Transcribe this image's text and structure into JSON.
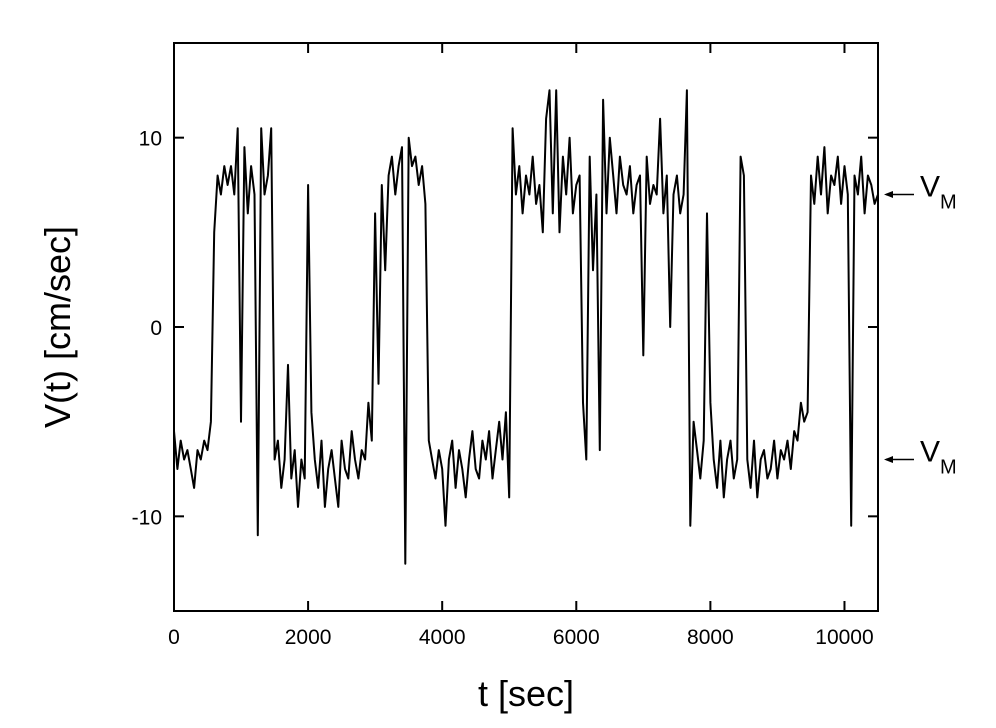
{
  "chart_data": {
    "type": "line",
    "xlabel": "t [sec]",
    "ylabel": "V(t) [cm/sec]",
    "xlim": [
      0,
      10500
    ],
    "ylim": [
      -15,
      15
    ],
    "xticks": [
      0,
      2000,
      4000,
      6000,
      8000,
      10000
    ],
    "yticks": [
      -10,
      0,
      10
    ],
    "annotations": [
      {
        "text": "V",
        "sub": "M",
        "value": 7
      },
      {
        "text": "V",
        "sub": "M",
        "value": -7
      }
    ],
    "x": [
      0,
      50,
      100,
      150,
      200,
      250,
      300,
      350,
      400,
      450,
      500,
      550,
      600,
      650,
      700,
      750,
      800,
      850,
      900,
      950,
      1000,
      1050,
      1100,
      1150,
      1200,
      1250,
      1300,
      1350,
      1400,
      1450,
      1500,
      1550,
      1600,
      1650,
      1700,
      1750,
      1800,
      1850,
      1900,
      1950,
      2000,
      2050,
      2100,
      2150,
      2200,
      2250,
      2300,
      2350,
      2400,
      2450,
      2500,
      2550,
      2600,
      2650,
      2700,
      2750,
      2800,
      2850,
      2900,
      2950,
      3000,
      3050,
      3100,
      3150,
      3200,
      3250,
      3300,
      3350,
      3400,
      3450,
      3500,
      3550,
      3600,
      3650,
      3700,
      3750,
      3800,
      3850,
      3900,
      3950,
      4000,
      4050,
      4100,
      4150,
      4200,
      4250,
      4300,
      4350,
      4400,
      4450,
      4500,
      4550,
      4600,
      4650,
      4700,
      4750,
      4800,
      4850,
      4900,
      4950,
      5000,
      5050,
      5100,
      5150,
      5200,
      5250,
      5300,
      5350,
      5400,
      5450,
      5500,
      5550,
      5600,
      5650,
      5700,
      5750,
      5800,
      5850,
      5900,
      5950,
      6000,
      6050,
      6100,
      6150,
      6200,
      6250,
      6300,
      6350,
      6400,
      6450,
      6500,
      6550,
      6600,
      6650,
      6700,
      6750,
      6800,
      6850,
      6900,
      6950,
      7000,
      7050,
      7100,
      7150,
      7200,
      7250,
      7300,
      7350,
      7400,
      7450,
      7500,
      7550,
      7600,
      7650,
      7700,
      7750,
      7800,
      7850,
      7900,
      7950,
      8000,
      8050,
      8100,
      8150,
      8200,
      8250,
      8300,
      8350,
      8400,
      8450,
      8500,
      8550,
      8600,
      8650,
      8700,
      8750,
      8800,
      8850,
      8900,
      8950,
      9000,
      9050,
      9100,
      9150,
      9200,
      9250,
      9300,
      9350,
      9400,
      9450,
      9500,
      9550,
      9600,
      9650,
      9700,
      9750,
      9800,
      9850,
      9900,
      9950,
      10000,
      10050,
      10100,
      10150,
      10200,
      10250,
      10300,
      10350,
      10400,
      10450,
      10500
    ],
    "series": [
      {
        "color": "#000000",
        "values": [
          -5.5,
          -7.5,
          -6,
          -7,
          -6.5,
          -7.5,
          -8.5,
          -6.5,
          -7,
          -6,
          -6.5,
          -5,
          5,
          8,
          7,
          8.5,
          7.5,
          8.5,
          7,
          10.5,
          -5,
          9.5,
          6,
          8.5,
          7,
          -11,
          10.5,
          7,
          8,
          10.5,
          -7,
          -6,
          -8.5,
          -7,
          -2,
          -8,
          -6.5,
          -9.5,
          -7,
          -8,
          7.5,
          -4.5,
          -7,
          -8.5,
          -6,
          -9.5,
          -7.5,
          -6.5,
          -8,
          -9.5,
          -6,
          -7.5,
          -8,
          -5.5,
          -7,
          -8,
          -6.5,
          -7,
          -4,
          -6,
          6,
          -3,
          7.5,
          3,
          8,
          9,
          7,
          8.5,
          9.5,
          -12.5,
          10,
          8.5,
          9,
          7.5,
          8.5,
          6.5,
          -6,
          -7,
          -8,
          -6.5,
          -7.5,
          -10.5,
          -7,
          -6,
          -8.5,
          -6.5,
          -7.5,
          -9,
          -7,
          -5.5,
          -7.5,
          -8,
          -6,
          -7,
          -5.5,
          -8,
          -6.5,
          -5,
          -7,
          -4.5,
          -9,
          10.5,
          7,
          8.5,
          6,
          8,
          7,
          9,
          6.5,
          7.5,
          5,
          11,
          12.5,
          6,
          12.5,
          5,
          9,
          7,
          10,
          6,
          7.5,
          8,
          -4,
          -7,
          9,
          3,
          7,
          -6.5,
          12,
          6,
          10,
          8,
          6,
          9,
          7.5,
          7,
          8.5,
          6,
          7.5,
          8,
          -1.5,
          9,
          6.5,
          7.5,
          7,
          11,
          6,
          8,
          0,
          7,
          8,
          6,
          7,
          12.5,
          -10.5,
          -5,
          -6.5,
          -8,
          -6,
          6,
          -4,
          -7,
          -8.5,
          -6,
          -9,
          -7,
          -6,
          -8,
          -7,
          9,
          8,
          -7,
          -8.5,
          -6,
          -9,
          -7,
          -6.5,
          -8,
          -7.5,
          -6,
          -8,
          -6.5,
          -7,
          -6,
          -7.5,
          -5.5,
          -6,
          -4,
          -5,
          -4.5,
          8,
          6.5,
          9,
          7,
          9.5,
          6,
          8,
          7.5,
          9,
          6.5,
          8.5,
          7,
          -10.5,
          8,
          7,
          9,
          6,
          8,
          7.5,
          6.5,
          7
        ]
      }
    ]
  }
}
